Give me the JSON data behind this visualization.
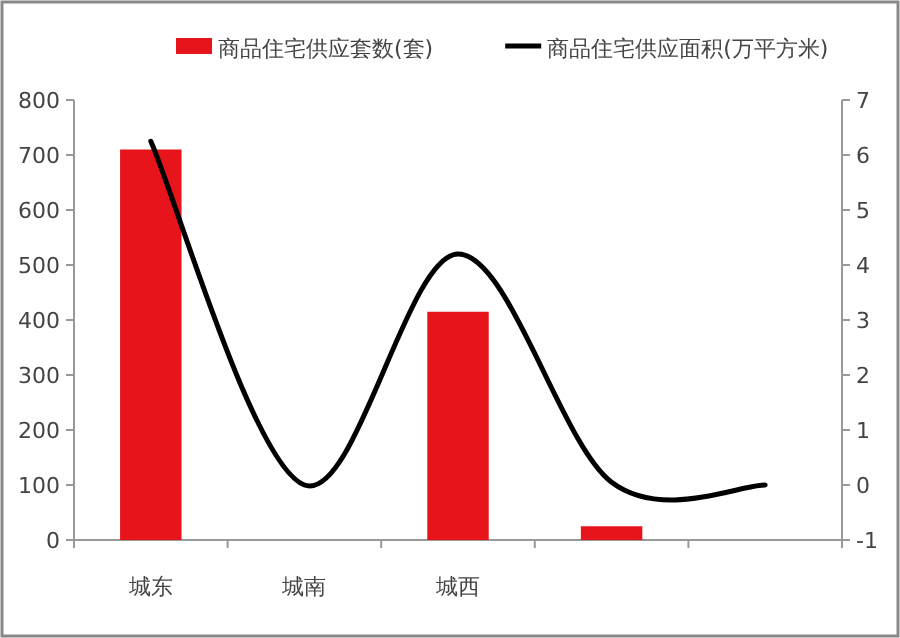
{
  "chart_data": {
    "type": "bar",
    "categories": [
      "城东",
      "城南",
      "城西",
      null,
      null
    ],
    "series": [
      {
        "name": "商品住宅供应套数(套)",
        "color": "#e8141c",
        "values": [
          710,
          0,
          415,
          25,
          0
        ]
      },
      {
        "name": "商品住宅供应面积(万平方米)",
        "type": "line",
        "axis": "y2",
        "color": "#000000",
        "values": [
          6.25,
          0,
          4.2,
          0.05,
          0
        ]
      }
    ],
    "ylim": [
      0,
      800
    ],
    "yticks": [
      0,
      100,
      200,
      300,
      400,
      500,
      600,
      700,
      800
    ],
    "y2lim": [
      -1,
      7
    ],
    "y2ticks": [
      -1,
      0,
      1,
      2,
      3,
      4,
      5,
      6,
      7
    ],
    "legend": "top",
    "grid": false,
    "marker": "none",
    "line_style": "solid"
  }
}
